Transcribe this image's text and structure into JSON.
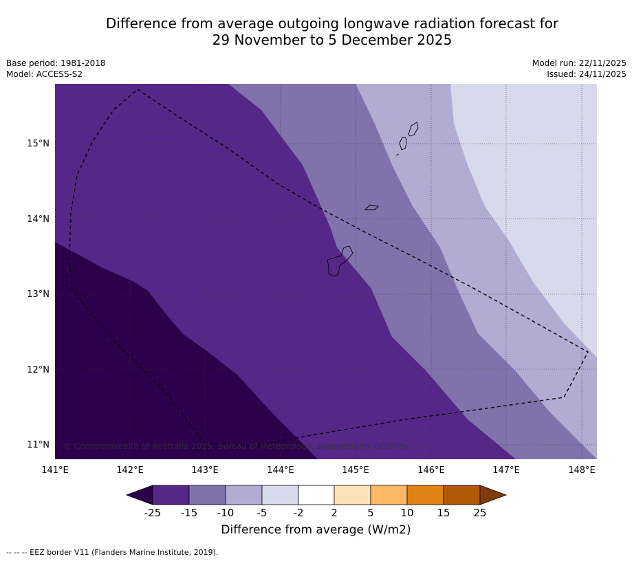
{
  "title": {
    "line1": "Difference from average outgoing longwave radiation forecast for",
    "line2": "29 November to 5 December 2025"
  },
  "meta": {
    "base_period": "Base period: 1981-2018",
    "model": "Model: ACCESS-S2",
    "model_run": "Model run: 22/11/2025",
    "issued": "Issued: 24/11/2025"
  },
  "map": {
    "lon_labels": [
      "141°E",
      "142°E",
      "143°E",
      "144°E",
      "145°E",
      "146°E",
      "147°E",
      "148°E"
    ],
    "lat_labels": [
      "15°N",
      "14°N",
      "13°N",
      "12°N",
      "11°N"
    ],
    "copyright": "© Commonwealth of Australia 2025, Bureau of Meteorology, supported by COSPPac",
    "colors": {
      "lt_minus25": "#2d004b",
      "minus25_to_minus15": "#542788",
      "minus15_to_minus10": "#8073ac",
      "minus10_to_minus5": "#b2abd2",
      "minus5_to_minus2": "#d8daeb"
    }
  },
  "colorbar": {
    "ticks": [
      "-25",
      "-15",
      "-10",
      "-5",
      "-2",
      "2",
      "5",
      "10",
      "15",
      "25"
    ],
    "colors": [
      "#2d004b",
      "#542788",
      "#8073ac",
      "#b2abd2",
      "#d8daeb",
      "#ffffff",
      "#fee0b6",
      "#fdb863",
      "#e08214",
      "#b35806",
      "#7f3b08"
    ],
    "title": "Difference from average (W/m2)"
  },
  "footnote": "--  --  -- EEZ border V11 (Flanders Marine Institute, 2019)."
}
